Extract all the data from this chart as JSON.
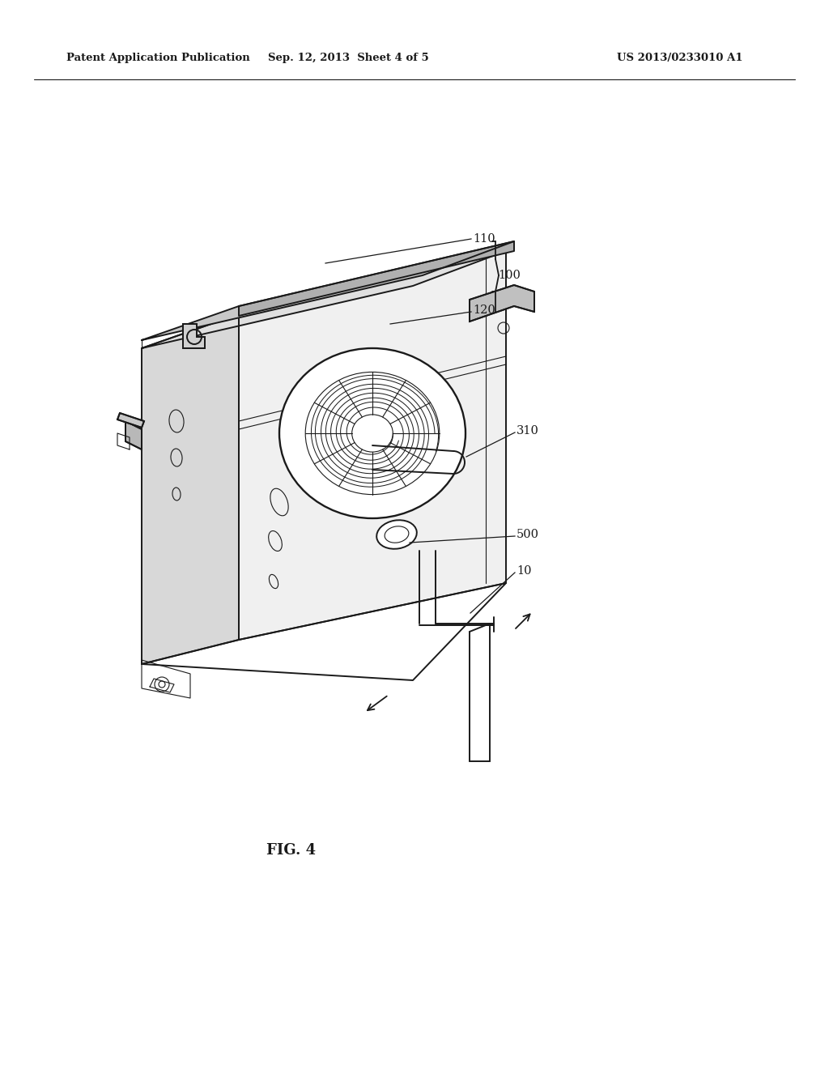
{
  "header_left": "Patent Application Publication",
  "header_center": "Sep. 12, 2013  Sheet 4 of 5",
  "header_right": "US 2013/0233010 A1",
  "fig_title": "FIG. 4",
  "background_color": "#ffffff",
  "line_color": "#1a1a1a",
  "fig_width": 10.24,
  "fig_height": 13.2,
  "dpi": 100,
  "lw_main": 1.4,
  "lw_thin": 0.8,
  "lw_thick": 2.0,
  "label_fontsize": 10.5
}
